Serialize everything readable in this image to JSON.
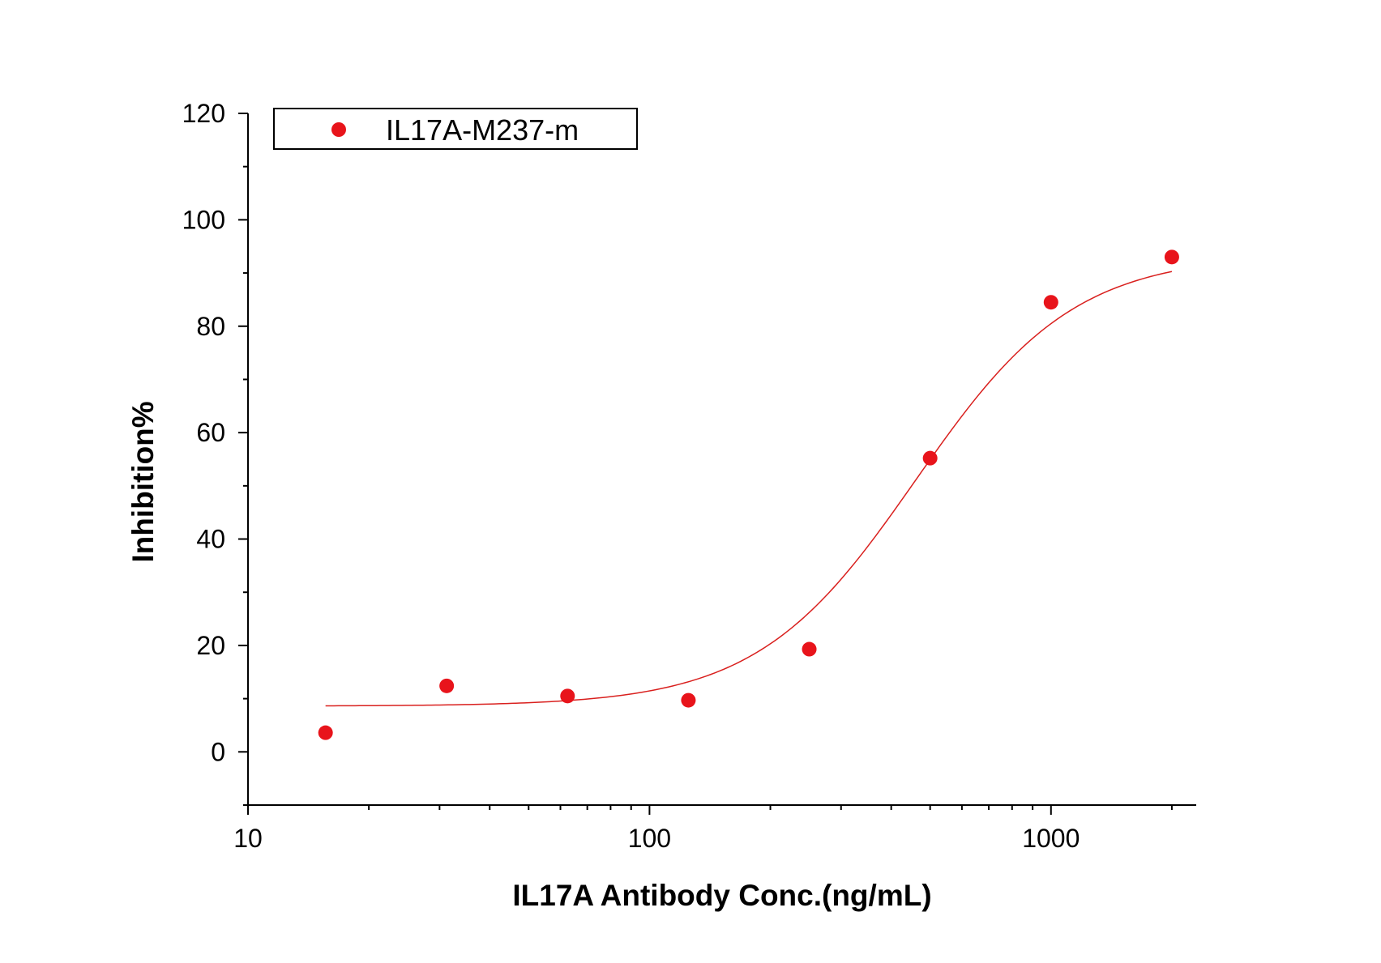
{
  "chart_data": {
    "type": "scatter",
    "xlabel": "IL17A Antibody Conc.(ng/mL)",
    "ylabel": "Inhibition%",
    "x_scale": "log",
    "xlim": [
      10,
      2300
    ],
    "ylim": [
      -10,
      120
    ],
    "x_ticks": [
      10,
      100,
      1000
    ],
    "x_tick_labels": [
      "10",
      "100",
      "1000"
    ],
    "y_ticks": [
      0,
      20,
      40,
      60,
      80,
      100,
      120
    ],
    "y_tick_labels": [
      "0",
      "20",
      "40",
      "60",
      "80",
      "100",
      "120"
    ],
    "grid": false,
    "legend_position": "top-left",
    "marker_color": "#e8141b",
    "fit_color": "#d9201e",
    "series": [
      {
        "name": "IL17A-M237-m",
        "x": [
          15.6,
          31.25,
          62.5,
          125,
          250,
          500,
          1000,
          2000
        ],
        "y": [
          3.6,
          12.4,
          10.5,
          9.7,
          19.3,
          55.2,
          84.5,
          93.0
        ]
      }
    ],
    "fit": {
      "model": "4PL",
      "bottom": 8.6,
      "top": 93.5,
      "ec50": 460,
      "hill": 2.2,
      "x_range": [
        15.6,
        2000
      ]
    }
  }
}
